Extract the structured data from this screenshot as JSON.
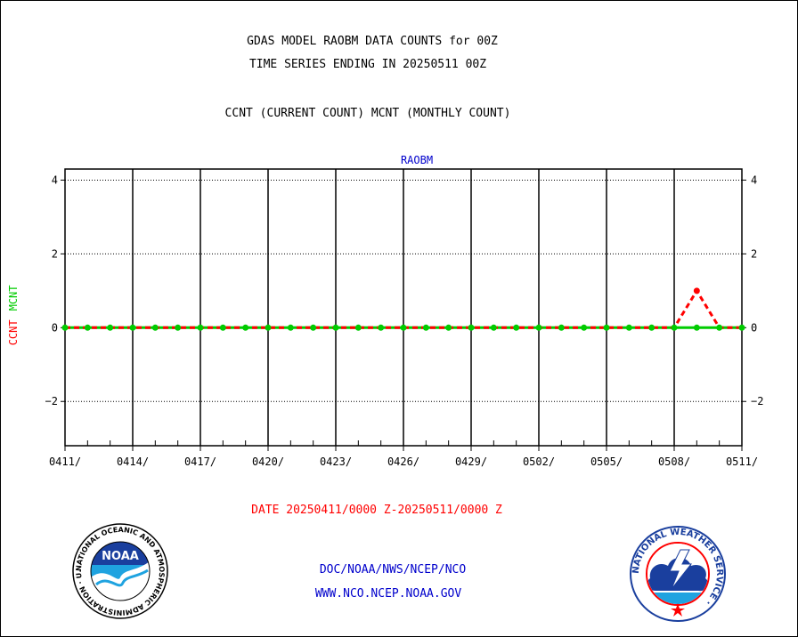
{
  "header": {
    "title_line1": "GDAS MODEL RAOBM DATA COUNTS for 00Z",
    "title_line2": "TIME SERIES ENDING IN 20250511 00Z",
    "subtitle": "CCNT (CURRENT COUNT) MCNT (MONTHLY COUNT)"
  },
  "chart_data": {
    "type": "line",
    "title": "RAOBM",
    "ylabel_ccnt": "CCNT",
    "ylabel_mcnt": "MCNT",
    "ylim": [
      -3.2,
      4.3
    ],
    "yticks": [
      4,
      2,
      0,
      -2
    ],
    "x_tick_labels": [
      "0411/",
      "0414/",
      "0417/",
      "0420/",
      "0423/",
      "0426/",
      "0429/",
      "0502/",
      "0505/",
      "0508/",
      "0511/"
    ],
    "x_count": 31,
    "grid": true,
    "series": [
      {
        "name": "CCNT",
        "color": "#ff0000",
        "values": [
          0,
          0,
          0,
          0,
          0,
          0,
          0,
          0,
          0,
          0,
          0,
          0,
          0,
          0,
          0,
          0,
          0,
          0,
          0,
          0,
          0,
          0,
          0,
          0,
          0,
          0,
          0,
          0,
          1,
          0,
          0
        ]
      },
      {
        "name": "MCNT",
        "color": "#00cc00",
        "values": [
          0,
          0,
          0,
          0,
          0,
          0,
          0,
          0,
          0,
          0,
          0,
          0,
          0,
          0,
          0,
          0,
          0,
          0,
          0,
          0,
          0,
          0,
          0,
          0,
          0,
          0,
          0,
          0,
          0,
          0,
          0
        ]
      }
    ],
    "date_range": "DATE 20250411/0000 Z-20250511/0000 Z"
  },
  "footer": {
    "line1": "DOC/NOAA/NWS/NCEP/NCO",
    "line2": "WWW.NCO.NCEP.NOAA.GOV",
    "noaa_logo_text": "NOAA",
    "noaa_ring_text": "NATIONAL OCEANIC AND ATMOSPHERIC ADMINISTRATION · U.S. DEPARTMENT OF COMMERCE ·",
    "nws_ring_text": "NATIONAL WEATHER SERVICE ·"
  },
  "colors": {
    "ccnt": "#ff0000",
    "mcnt": "#00cc00",
    "raobm_title": "#0000cc",
    "footer_text": "#0000cc",
    "date_text": "#ff0000"
  }
}
